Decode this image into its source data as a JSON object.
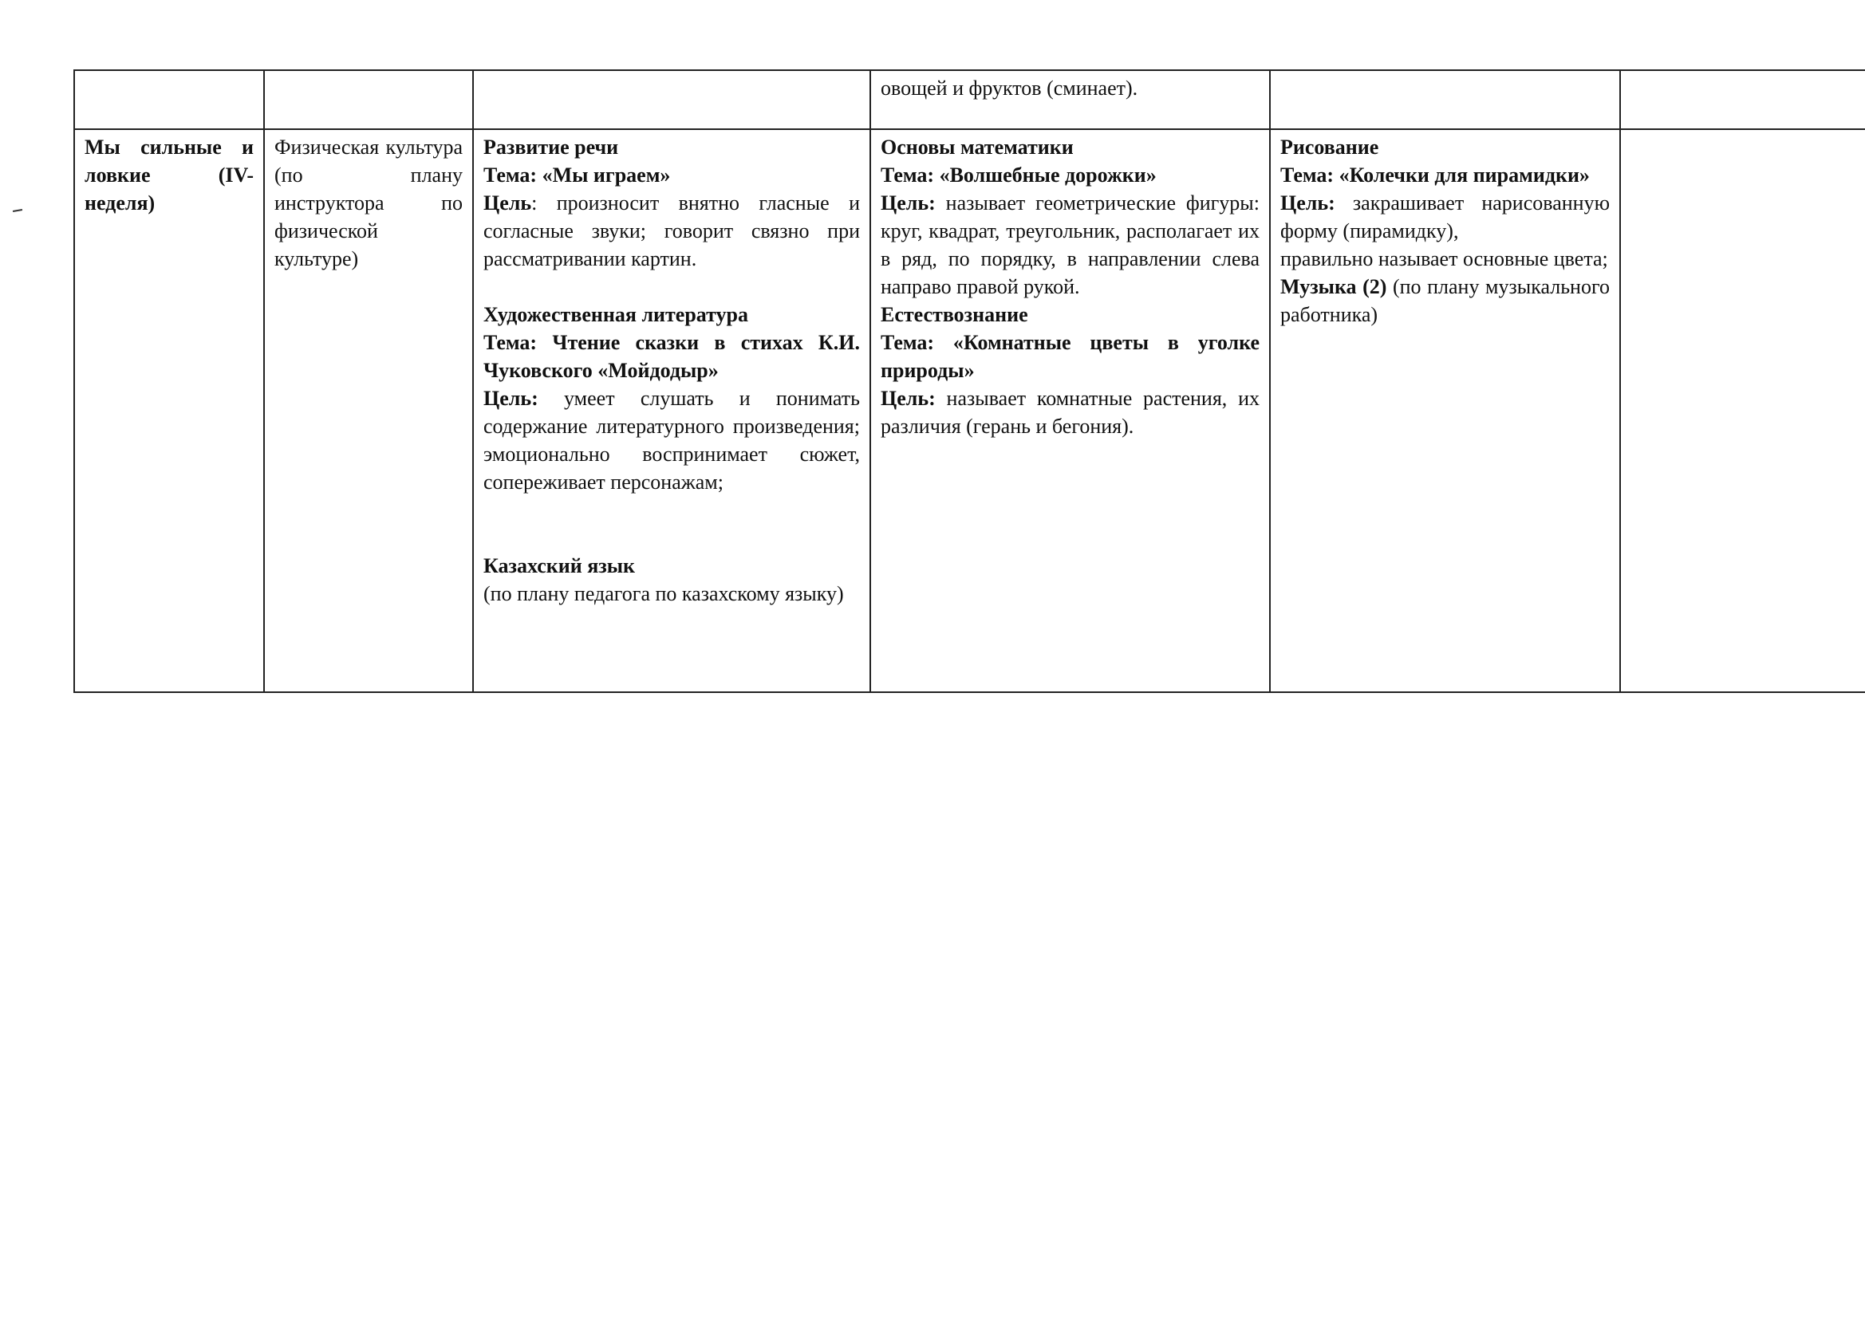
{
  "table": {
    "row1": [
      "",
      "",
      "",
      "овощей и фруктов (сминает).",
      "",
      ""
    ],
    "row2": [
      [
        [
          {
            "t": "Мы сильные и ловкие (IV- неделя)",
            "b": true
          }
        ]
      ],
      [
        [
          {
            "t": "Физическая культура (по плану инструктора по физической культуре)",
            "b": false
          }
        ]
      ],
      [
        [
          {
            "t": "Развитие речи",
            "b": true
          }
        ],
        [
          {
            "t": "Тема: «Мы играем»",
            "b": true
          }
        ],
        [
          {
            "t": "Цель",
            "b": true
          },
          {
            "t": ": произносит внятно гласные и согласные звуки; говорит связно при рассматривании картин.",
            "b": false
          }
        ],
        [],
        [
          {
            "t": "Художественная литература",
            "b": true
          }
        ],
        [
          {
            "t": "Тема: Чтение сказки в стихах К.И. Чуковского «Мойдодыр»",
            "b": true
          }
        ],
        [
          {
            "t": "Цель:",
            "b": true
          },
          {
            "t": " умеет слушать и понимать содержание литературного произведения; эмоционально воспринимает сюжет, сопереживает персонажам;",
            "b": false
          }
        ],
        [],
        [],
        [
          {
            "t": "Казахский язык",
            "b": true
          }
        ],
        [
          {
            "t": "(по плану педагога по казахскому языку)",
            "b": false
          }
        ]
      ],
      [
        [
          {
            "t": "Основы математики",
            "b": true
          }
        ],
        [
          {
            "t": "Тема: «Волшебные дорожки»",
            "b": true
          }
        ],
        [
          {
            "t": "Цель:",
            "b": true
          },
          {
            "t": " называет геометрические фигуры: круг, квадрат, треугольник, располагает их в ряд, по порядку, в направлении слева направо правой рукой.",
            "b": false
          }
        ],
        [
          {
            "t": "Естествознание",
            "b": true
          }
        ],
        [
          {
            "t": "Тема: «Комнатные цветы в уголке природы»",
            "b": true
          }
        ],
        [
          {
            "t": "Цель:",
            "b": true
          },
          {
            "t": " называет комнатные растения, их различия (герань и бегония).",
            "b": false
          }
        ]
      ],
      [
        [
          {
            "t": "Рисование",
            "b": true
          }
        ],
        [
          {
            "t": "Тема: «Колечки для пирамидки»",
            "b": true
          }
        ],
        [
          {
            "t": "Цель:",
            "b": true
          },
          {
            "t": " закрашивает нарисованную форму (пирамидку),",
            "b": false
          }
        ],
        [
          {
            "t": "правильно называет основные цвета;",
            "b": false
          }
        ],
        [
          {
            "t": " Музыка (2)",
            "b": true
          },
          {
            "t": " (по плану музыкального работника)",
            "b": false
          }
        ]
      ],
      []
    ]
  }
}
